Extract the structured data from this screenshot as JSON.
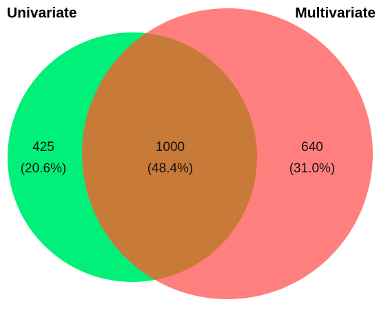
{
  "chart_data": {
    "type": "venn",
    "sets": [
      {
        "name": "Univariate",
        "color": "#00f07a"
      },
      {
        "name": "Multivariate",
        "color": "#ff7f7f"
      }
    ],
    "overlap_color": "#c87a38",
    "regions": [
      "Univariate only",
      "Both",
      "Multivariate only"
    ],
    "values": [
      425,
      1000,
      640
    ],
    "percents": [
      20.6,
      48.4,
      31.0
    ],
    "value_labels": [
      "(20.6%)",
      "(48.4%)",
      "(31.0%)"
    ]
  }
}
